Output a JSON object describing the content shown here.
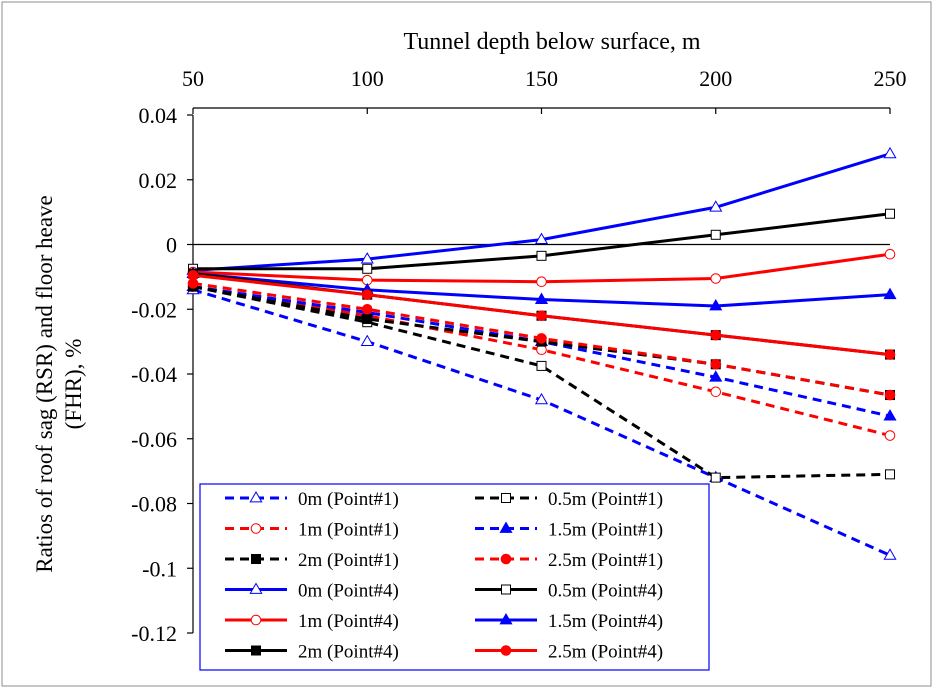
{
  "chart_data": {
    "type": "line",
    "xlabel": "Tunnel depth below surface, m",
    "ylabel_lines": [
      "Ratios of roof sag (RSR) and floor heave",
      "(FHR), %"
    ],
    "x": [
      50,
      100,
      150,
      200,
      250
    ],
    "xlim": [
      50,
      250
    ],
    "ylim": [
      -0.12,
      0.04
    ],
    "x_ticks": [
      50,
      100,
      150,
      200,
      250
    ],
    "y_ticks": [
      0.04,
      0.02,
      0,
      -0.02,
      -0.04,
      -0.06,
      -0.08,
      -0.1,
      -0.12
    ],
    "x_tick_labels": [
      "50",
      "100",
      "150",
      "200",
      "250"
    ],
    "y_tick_labels": [
      "0.04",
      "0.02",
      "0",
      "-0.02",
      "-0.04",
      "-0.06",
      "-0.08",
      "-0.1",
      "-0.12"
    ],
    "x_axis_position": "top",
    "legend_position": "bottom-left",
    "series": [
      {
        "name": "0m (Point#1)",
        "color": "#0000ff",
        "dash": true,
        "marker": "triangle-open",
        "values": [
          -0.014,
          -0.03,
          -0.048,
          -0.072,
          -0.096
        ]
      },
      {
        "name": "0.5m (Point#1)",
        "color": "#000000",
        "dash": true,
        "marker": "square-open",
        "values": [
          -0.013,
          -0.024,
          -0.0375,
          -0.072,
          -0.071
        ]
      },
      {
        "name": "1m (Point#1)",
        "color": "#ff0000",
        "dash": true,
        "marker": "circle-open",
        "values": [
          -0.013,
          -0.022,
          -0.0325,
          -0.0455,
          -0.059
        ]
      },
      {
        "name": "1.5m (Point#1)",
        "color": "#0000ff",
        "dash": true,
        "marker": "triangle-filled",
        "values": [
          -0.013,
          -0.021,
          -0.03,
          -0.041,
          -0.053
        ]
      },
      {
        "name": "2m (Point#1)",
        "color": "#000000",
        "dash": true,
        "marker": "square-filled",
        "values": [
          -0.013,
          -0.023,
          -0.03,
          -0.037,
          -0.0465
        ]
      },
      {
        "name": "2.5m (Point#1)",
        "color": "#ff0000",
        "dash": true,
        "marker": "circle-filled",
        "values": [
          -0.012,
          -0.02,
          -0.029,
          -0.037,
          -0.0465
        ]
      },
      {
        "name": "0m (Point#4)",
        "color": "#0000ff",
        "dash": false,
        "marker": "triangle-open",
        "values": [
          -0.008,
          -0.0045,
          0.0015,
          0.0115,
          0.028
        ]
      },
      {
        "name": "0.5m (Point#4)",
        "color": "#000000",
        "dash": false,
        "marker": "square-open",
        "values": [
          -0.0075,
          -0.0075,
          -0.0035,
          0.003,
          0.0095
        ]
      },
      {
        "name": "1m (Point#4)",
        "color": "#ff0000",
        "dash": false,
        "marker": "circle-open",
        "values": [
          -0.0085,
          -0.011,
          -0.0115,
          -0.0105,
          -0.003
        ]
      },
      {
        "name": "1.5m (Point#4)",
        "color": "#0000ff",
        "dash": false,
        "marker": "triangle-filled",
        "values": [
          -0.009,
          -0.014,
          -0.017,
          -0.019,
          -0.0155
        ]
      },
      {
        "name": "2m (Point#4)",
        "color": "#000000",
        "dash": false,
        "marker": "square-filled",
        "values": [
          -0.009,
          -0.0155,
          -0.022,
          -0.028,
          -0.034
        ]
      },
      {
        "name": "2.5m (Point#4)",
        "color": "#ff0000",
        "dash": false,
        "marker": "circle-filled",
        "values": [
          -0.0095,
          -0.0155,
          -0.022,
          -0.028,
          -0.034
        ]
      }
    ]
  }
}
